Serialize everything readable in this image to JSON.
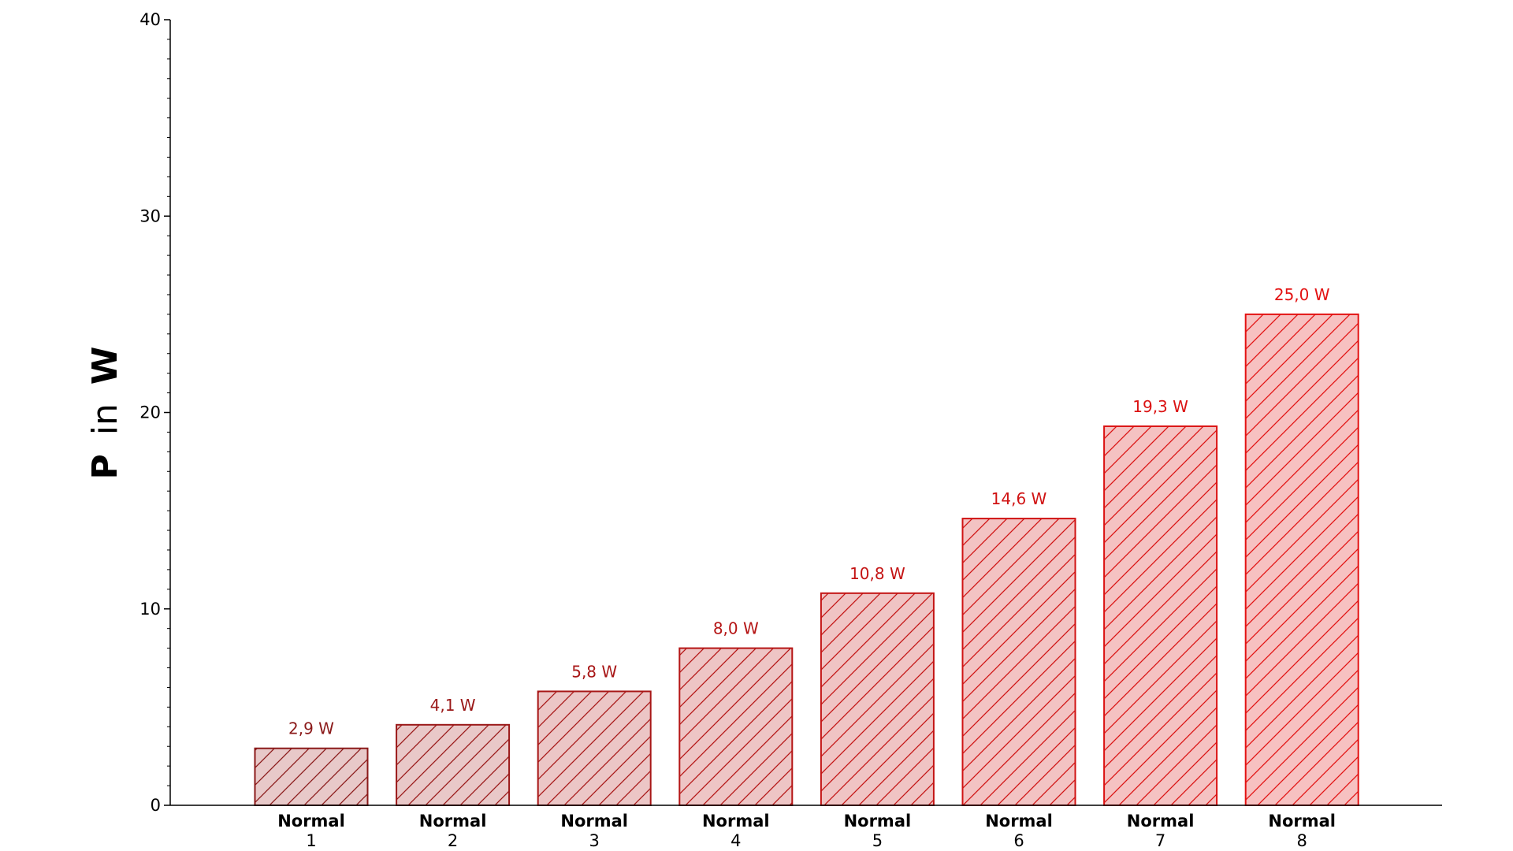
{
  "chart_data": {
    "type": "bar",
    "categories": [
      {
        "line1": "Normal",
        "line2": "1"
      },
      {
        "line1": "Normal",
        "line2": "2"
      },
      {
        "line1": "Normal",
        "line2": "3"
      },
      {
        "line1": "Normal",
        "line2": "4"
      },
      {
        "line1": "Normal",
        "line2": "5"
      },
      {
        "line1": "Normal",
        "line2": "6"
      },
      {
        "line1": "Normal",
        "line2": "7"
      },
      {
        "line1": "Normal",
        "line2": "8"
      }
    ],
    "values": [
      2.9,
      4.1,
      5.8,
      8.0,
      10.8,
      14.6,
      19.3,
      25.0
    ],
    "value_labels": [
      "2,9 W",
      "4,1 W",
      "5,8 W",
      "8,0 W",
      "10,8 W",
      "14,6 W",
      "19,3 W",
      "25,0 W"
    ],
    "ylabel": {
      "symbol": "P",
      "word": "in",
      "unit": "W"
    },
    "ylim": [
      0,
      40
    ],
    "yticks": [
      "0",
      "10",
      "20",
      "30",
      "40"
    ],
    "grid": false,
    "bar_pattern": "diagonal-hatch",
    "colors": {
      "edge": [
        "#8b1a1a",
        "#9a1818",
        "#a81717",
        "#b51515",
        "#c41414",
        "#d01313",
        "#db1212",
        "#e31212"
      ],
      "fill": [
        "#e8c9c9",
        "#e9c8c8",
        "#ecc6c6",
        "#eec5c5",
        "#f0c4c4",
        "#f3c3c3",
        "#f5c2c2",
        "#f7c1c1"
      ]
    }
  }
}
